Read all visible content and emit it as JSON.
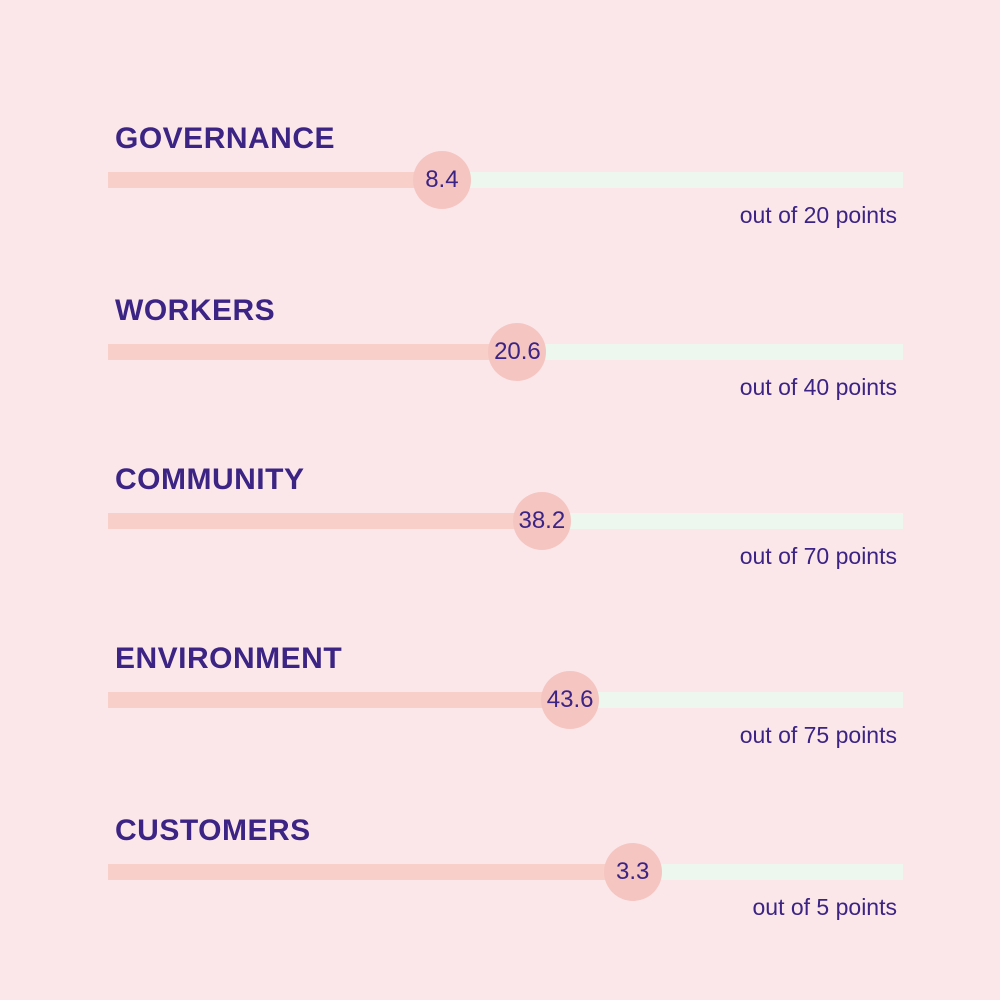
{
  "chart_data": {
    "type": "bar",
    "orientation": "horizontal",
    "title": "",
    "categories": [
      "GOVERNANCE",
      "WORKERS",
      "COMMUNITY",
      "ENVIRONMENT",
      "CUSTOMERS"
    ],
    "values": [
      8.4,
      20.6,
      38.2,
      43.6,
      3.3
    ],
    "max_points": [
      20,
      40,
      70,
      75,
      5
    ],
    "captions": [
      "out of 20 points",
      "out of 40 points",
      "out of 70 points",
      "out of 75 points",
      "out of 5 points"
    ],
    "legend": false,
    "grid": false,
    "xlabel": "",
    "ylabel": ""
  },
  "colors": {
    "background": "#fbe7e9",
    "bar_fill": "#f8cfc9",
    "bar_track": "#eef7ed",
    "marker_fill": "#f5c5c1",
    "text": "#3b2483"
  }
}
